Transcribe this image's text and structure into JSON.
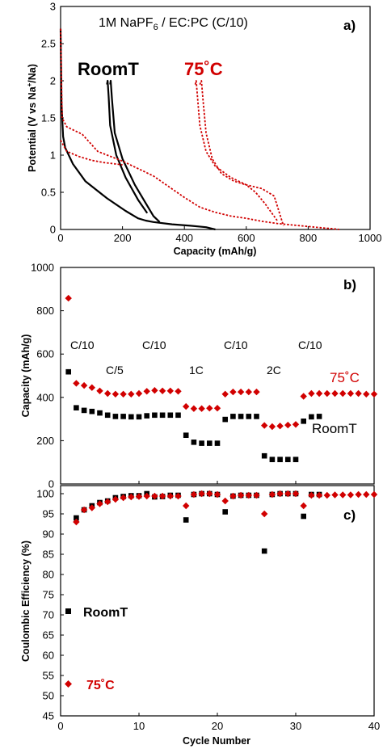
{
  "colors": {
    "room": "#000000",
    "hot": "#d10000"
  },
  "chart_data": [
    {
      "type": "line",
      "panel_label": "a)",
      "title_pre": "1M NaPF",
      "title_sub": "6",
      "title_post": " / EC:PC  (C/10)",
      "xlabel": "Capacity (mAh/g)",
      "ylabel_pre": "Potential (V vs Na",
      "ylabel_sup": "+",
      "ylabel_post": "/Na)",
      "xlim": [
        0,
        1000
      ],
      "ylim": [
        0,
        3
      ],
      "xticks": [
        0,
        200,
        400,
        600,
        800,
        1000
      ],
      "yticks": [
        0,
        0.5,
        1,
        1.5,
        2,
        2.5,
        3
      ],
      "xtick_labels": [
        "0",
        "200",
        "400",
        "600",
        "800",
        "1000"
      ],
      "ytick_labels": [
        "0",
        "0.5",
        "1",
        "1.5",
        "2",
        "2.5",
        "3"
      ],
      "series_labels": [
        "RoomT",
        "75˚C"
      ],
      "series": [
        {
          "group": "room",
          "style": "solid",
          "x": [
            0,
            3,
            8,
            15,
            40,
            80,
            150,
            210,
            250,
            275,
            300,
            360,
            420,
            470,
            490,
            500
          ],
          "y": [
            2.7,
            1.7,
            1.25,
            1.1,
            0.88,
            0.65,
            0.42,
            0.25,
            0.15,
            0.12,
            0.1,
            0.07,
            0.05,
            0.03,
            0.01,
            0.0
          ]
        },
        {
          "group": "room",
          "style": "solid",
          "x": [
            150,
            152,
            155,
            160,
            180,
            210,
            250,
            280
          ],
          "y": [
            1.95,
            2.0,
            1.8,
            1.4,
            1.0,
            0.7,
            0.4,
            0.22
          ]
        },
        {
          "group": "room",
          "style": "solid",
          "x": [
            160,
            162,
            166,
            175,
            200,
            240,
            280,
            300,
            320
          ],
          "y": [
            1.95,
            2.0,
            1.75,
            1.3,
            0.95,
            0.6,
            0.32,
            0.18,
            0.1
          ]
        },
        {
          "group": "hot",
          "style": "dotted",
          "x": [
            0,
            5,
            20,
            70,
            120,
            200,
            300,
            400,
            450,
            500,
            550,
            600,
            650,
            700,
            750,
            800,
            850,
            880,
            900
          ],
          "y": [
            2.7,
            1.5,
            1.38,
            1.28,
            1.05,
            0.92,
            0.72,
            0.43,
            0.3,
            0.23,
            0.18,
            0.15,
            0.11,
            0.08,
            0.06,
            0.04,
            0.02,
            0.01,
            0.0
          ]
        },
        {
          "group": "hot",
          "style": "dotted",
          "x": [
            0,
            20,
            60,
            100,
            140,
            180,
            200
          ],
          "y": [
            1.2,
            1.05,
            0.98,
            0.93,
            0.9,
            0.88,
            0.87
          ]
        },
        {
          "group": "hot",
          "style": "dotted",
          "x": [
            435,
            438,
            442,
            450,
            470,
            500,
            550,
            600,
            630,
            660,
            700
          ],
          "y": [
            1.95,
            2.0,
            1.8,
            1.4,
            1.05,
            0.85,
            0.7,
            0.6,
            0.5,
            0.35,
            0.12
          ]
        },
        {
          "group": "hot",
          "style": "dotted",
          "x": [
            450,
            455,
            460,
            470,
            490,
            520,
            560,
            600,
            650,
            690,
            720
          ],
          "y": [
            1.95,
            2.0,
            1.75,
            1.3,
            0.95,
            0.75,
            0.65,
            0.6,
            0.55,
            0.45,
            0.05
          ]
        }
      ]
    },
    {
      "type": "scatter",
      "panel_label": "b)",
      "xlabel": "",
      "ylabel": "Capacity (mAh/g)",
      "xlim": [
        0,
        40
      ],
      "ylim": [
        0,
        1000
      ],
      "yticks": [
        0,
        200,
        400,
        600,
        800,
        1000
      ],
      "ytick_labels": [
        "0",
        "200",
        "400",
        "600",
        "800",
        "1000"
      ],
      "rate_labels": [
        "C/10",
        "C/5",
        "C/10",
        "1C",
        "C/10",
        "2C",
        "C/10"
      ],
      "series_labels": [
        "75˚C",
        "RoomT"
      ],
      "series": [
        {
          "group": "room",
          "marker": "square",
          "x": [
            1,
            2,
            3,
            4,
            5,
            6,
            7,
            8,
            9,
            10,
            11,
            12,
            13,
            14,
            15,
            16,
            17,
            18,
            19,
            20,
            21,
            22,
            23,
            24,
            25,
            26,
            27,
            28,
            29,
            30,
            31,
            32,
            33
          ],
          "y": [
            518,
            352,
            340,
            335,
            328,
            318,
            312,
            312,
            310,
            310,
            315,
            318,
            318,
            318,
            318,
            225,
            193,
            188,
            188,
            188,
            298,
            312,
            312,
            312,
            312,
            130,
            113,
            113,
            113,
            113,
            290,
            310,
            312
          ]
        },
        {
          "group": "hot",
          "marker": "diamond",
          "x": [
            1,
            2,
            3,
            4,
            5,
            6,
            7,
            8,
            9,
            10,
            11,
            12,
            13,
            14,
            15,
            16,
            17,
            18,
            19,
            20,
            21,
            22,
            23,
            24,
            25,
            26,
            27,
            28,
            29,
            30,
            31,
            32,
            33,
            34,
            35,
            36,
            37,
            38,
            39,
            40
          ],
          "y": [
            858,
            465,
            455,
            445,
            430,
            418,
            415,
            415,
            415,
            418,
            428,
            432,
            430,
            430,
            428,
            358,
            348,
            348,
            350,
            350,
            415,
            425,
            425,
            425,
            425,
            270,
            265,
            268,
            272,
            275,
            405,
            418,
            418,
            418,
            418,
            418,
            418,
            418,
            415,
            415
          ]
        }
      ]
    },
    {
      "type": "scatter",
      "panel_label": "c)",
      "xlabel": "Cycle Number",
      "ylabel": "Coulombic Efficiency (%)",
      "xlim": [
        0,
        40
      ],
      "ylim": [
        45,
        102
      ],
      "xticks": [
        0,
        10,
        20,
        30,
        40
      ],
      "xtick_labels": [
        "0",
        "10",
        "20",
        "30",
        "40"
      ],
      "yticks": [
        45,
        50,
        55,
        60,
        65,
        70,
        75,
        80,
        85,
        90,
        95,
        100
      ],
      "ytick_labels": [
        "45",
        "50",
        "55",
        "60",
        "65",
        "70",
        "75",
        "80",
        "85",
        "90",
        "95",
        "100"
      ],
      "series_labels": [
        "RoomT",
        "75˚C"
      ],
      "series": [
        {
          "group": "room",
          "marker": "square",
          "x": [
            2,
            3,
            4,
            5,
            6,
            7,
            8,
            9,
            10,
            11,
            12,
            13,
            14,
            15,
            16,
            17,
            18,
            19,
            20,
            21,
            22,
            23,
            24,
            25,
            26,
            27,
            28,
            29,
            30,
            31,
            32,
            33
          ],
          "y": [
            94,
            96,
            97,
            97.8,
            98.2,
            99,
            99.3,
            99.5,
            99.5,
            100,
            99.2,
            99.3,
            99.6,
            99.6,
            93.5,
            99.8,
            100,
            100,
            99.8,
            95.5,
            99.4,
            99.6,
            99.6,
            99.6,
            85.8,
            99.8,
            100,
            100,
            100,
            94.4,
            99.8,
            99.8
          ]
        },
        {
          "group": "hot",
          "marker": "diamond",
          "x": [
            2,
            3,
            4,
            5,
            6,
            7,
            8,
            9,
            10,
            11,
            12,
            13,
            14,
            15,
            16,
            17,
            18,
            19,
            20,
            21,
            22,
            23,
            24,
            25,
            26,
            27,
            28,
            29,
            30,
            31,
            32,
            33,
            34,
            35,
            36,
            37,
            38,
            39,
            40
          ],
          "y": [
            93,
            96,
            96.5,
            97.5,
            98,
            98.6,
            99,
            99.2,
            99.3,
            99.4,
            99.4,
            99.4,
            99.4,
            99.4,
            97,
            99.8,
            100,
            100,
            99.8,
            98.2,
            99.4,
            99.6,
            99.6,
            99.6,
            95,
            99.8,
            100,
            100,
            100,
            97,
            99.6,
            99.6,
            99.6,
            99.7,
            99.7,
            99.7,
            99.8,
            99.8,
            99.8
          ]
        }
      ]
    }
  ]
}
